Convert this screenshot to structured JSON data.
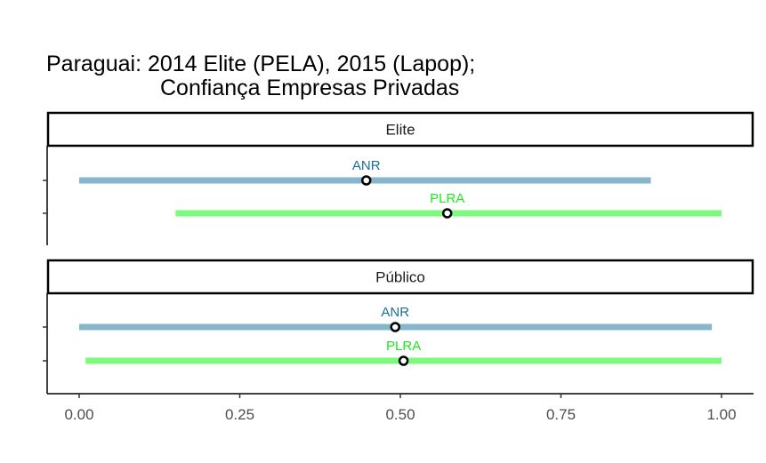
{
  "chart_data": {
    "type": "errorbar",
    "title_line1": "Paraguai: 2014 Elite (PELA), 2015 (Lapop);",
    "title_line2": "Confiança Empresas Privadas",
    "xlim": [
      -0.05,
      1.05
    ],
    "x_ticks": [
      0,
      0.25,
      0.5,
      0.75,
      1
    ],
    "x_tick_labels": [
      "0.00",
      "0.25",
      "0.50",
      "0.75",
      "1.00"
    ],
    "colors": {
      "ANR": "#85b6cb",
      "PLRA": "#7dfa7d"
    },
    "label_colors": {
      "ANR": "#1b6e96",
      "PLRA": "#1ee81e"
    },
    "panels": [
      {
        "strip": "Elite",
        "series": [
          {
            "name": "ANR",
            "low": 0.0,
            "high": 0.89,
            "point": 0.447
          },
          {
            "name": "PLRA",
            "low": 0.15,
            "high": 1.0,
            "point": 0.573
          }
        ]
      },
      {
        "strip": "Público",
        "series": [
          {
            "name": "ANR",
            "low": 0.0,
            "high": 0.985,
            "point": 0.492
          },
          {
            "name": "PLRA",
            "low": 0.01,
            "high": 1.0,
            "point": 0.505
          }
        ]
      }
    ]
  }
}
